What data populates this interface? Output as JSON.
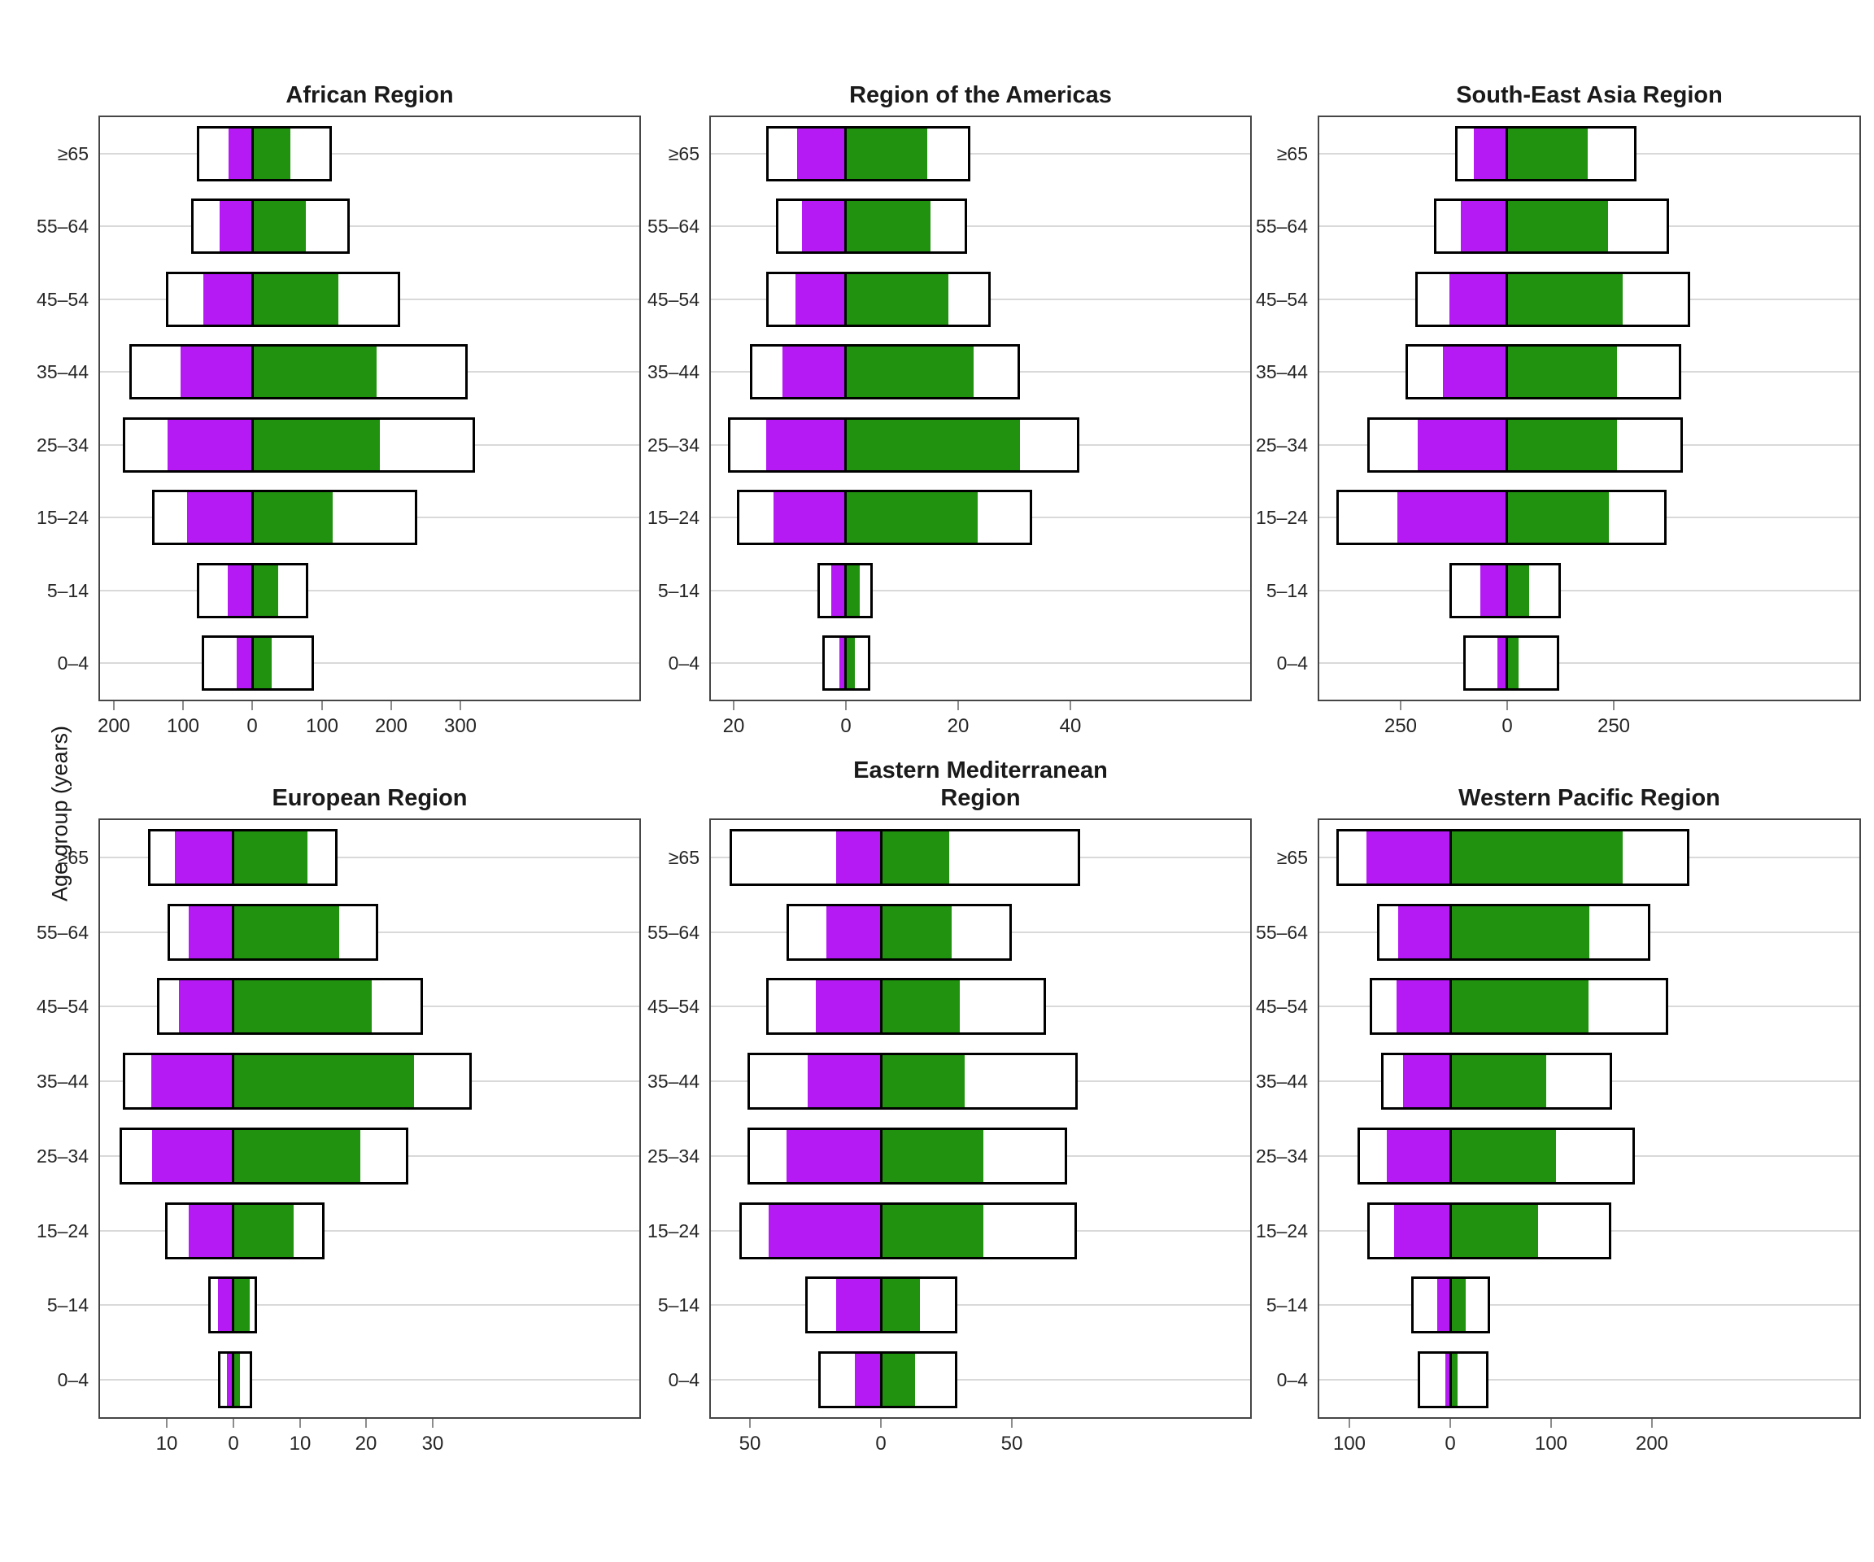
{
  "figure": {
    "y_axis_label": "Age group (years)",
    "background": "#ffffff",
    "colors": {
      "left_bar": "#b51af5",
      "right_bar": "#219110",
      "outline_bar_fill": "#ffffff",
      "outline_bar_border": "#000000",
      "panel_border": "#464646",
      "gridline": "#d9d9d9",
      "tick_mark": "#8c8c8c",
      "text": "#262626"
    }
  },
  "chart_data": [
    {
      "type": "bar",
      "title": "African Region",
      "orientation": "population-pyramid",
      "categories": [
        "≥65",
        "55–64",
        "45–54",
        "35–44",
        "25–34",
        "15–24",
        "5–14",
        "0–4"
      ],
      "series": [
        {
          "name": "outline_left",
          "values": [
            80,
            88,
            125,
            178,
            187,
            145,
            80,
            73
          ]
        },
        {
          "name": "filled_left",
          "values": [
            35,
            47,
            71,
            104,
            123,
            95,
            36,
            23
          ]
        },
        {
          "name": "filled_right",
          "values": [
            55,
            78,
            124,
            179,
            184,
            116,
            38,
            28
          ]
        },
        {
          "name": "outline_right",
          "values": [
            115,
            141,
            213,
            310,
            321,
            238,
            81,
            89
          ]
        }
      ],
      "xlim": [
        -220,
        558
      ],
      "xticks": [
        -200,
        -100,
        0,
        100,
        200,
        300
      ],
      "xtick_labels": [
        "200",
        "100",
        "0",
        "100",
        "200",
        "300"
      ],
      "grid": "horizontal-major",
      "legend": "none"
    },
    {
      "type": "bar",
      "title": "Region of the Americas",
      "orientation": "population-pyramid",
      "categories": [
        "≥65",
        "55–64",
        "45–54",
        "35–44",
        "25–34",
        "15–24",
        "5–14",
        "0–4"
      ],
      "series": [
        {
          "name": "outline_left",
          "values": [
            14.1,
            12.4,
            14.2,
            17.0,
            21.0,
            19.3,
            5.0,
            4.1
          ]
        },
        {
          "name": "filled_left",
          "values": [
            8.6,
            7.8,
            9.0,
            11.2,
            14.1,
            12.8,
            2.5,
            1.1
          ]
        },
        {
          "name": "filled_right",
          "values": [
            14.5,
            15.0,
            18.3,
            22.7,
            31.0,
            23.4,
            2.4,
            1.6
          ]
        },
        {
          "name": "outline_right",
          "values": [
            22.2,
            21.6,
            25.7,
            31.0,
            41.6,
            33.3,
            4.8,
            4.5
          ]
        }
      ],
      "xlim": [
        -24,
        72
      ],
      "xticks": [
        -20,
        0,
        20,
        40
      ],
      "xtick_labels": [
        "20",
        "0",
        "20",
        "40"
      ],
      "grid": "horizontal-major",
      "legend": "none"
    },
    {
      "type": "bar",
      "title": "South-East Asia Region",
      "orientation": "population-pyramid",
      "categories": [
        "≥65",
        "55–64",
        "45–54",
        "35–44",
        "25–34",
        "15–24",
        "5–14",
        "0–4"
      ],
      "series": [
        {
          "name": "outline_left",
          "values": [
            123,
            173,
            217,
            240,
            329,
            402,
            135,
            103
          ]
        },
        {
          "name": "filled_left",
          "values": [
            78,
            108,
            135,
            152,
            211,
            258,
            63,
            22
          ]
        },
        {
          "name": "filled_right",
          "values": [
            190,
            237,
            272,
            258,
            259,
            239,
            51,
            27
          ]
        },
        {
          "name": "outline_right",
          "values": [
            304,
            381,
            430,
            409,
            413,
            375,
            128,
            122
          ]
        }
      ],
      "xlim": [
        -442,
        829
      ],
      "xticks": [
        -250,
        0,
        250
      ],
      "xtick_labels": [
        "250",
        "0",
        "250"
      ],
      "grid": "horizontal-major",
      "legend": "none"
    },
    {
      "type": "bar",
      "title": "European Region",
      "orientation": "population-pyramid",
      "categories": [
        "≥65",
        "55–64",
        "45–54",
        "35–44",
        "25–34",
        "15–24",
        "5–14",
        "0–4"
      ],
      "series": [
        {
          "name": "outline_left",
          "values": [
            12.8,
            9.8,
            11.4,
            16.6,
            17.1,
            10.2,
            3.7,
            2.3
          ]
        },
        {
          "name": "filled_left",
          "values": [
            8.8,
            6.7,
            8.2,
            12.3,
            12.2,
            6.7,
            2.3,
            0.9
          ]
        },
        {
          "name": "filled_right",
          "values": [
            11.1,
            15.9,
            20.8,
            27.1,
            19.1,
            9.0,
            2.4,
            1.0
          ]
        },
        {
          "name": "outline_right",
          "values": [
            15.7,
            21.8,
            28.5,
            35.8,
            26.3,
            13.8,
            3.6,
            2.8
          ]
        }
      ],
      "xlim": [
        -20,
        61
      ],
      "xticks": [
        -10,
        0,
        10,
        20,
        30
      ],
      "xtick_labels": [
        "10",
        "0",
        "10",
        "20",
        "30"
      ],
      "grid": "horizontal-major",
      "legend": "none"
    },
    {
      "type": "bar",
      "title": "Eastern Mediterranean Region",
      "orientation": "population-pyramid",
      "categories": [
        "≥65",
        "55–64",
        "45–54",
        "35–44",
        "25–34",
        "15–24",
        "5–14",
        "0–4"
      ],
      "series": [
        {
          "name": "outline_left",
          "values": [
            58,
            36,
            44,
            51,
            51,
            54,
            29,
            24
          ]
        },
        {
          "name": "filled_left",
          "values": [
            17,
            21,
            25,
            28,
            36,
            43,
            17,
            10
          ]
        },
        {
          "name": "filled_right",
          "values": [
            26,
            27,
            30,
            32,
            39,
            39,
            15,
            13
          ]
        },
        {
          "name": "outline_right",
          "values": [
            76,
            50,
            63,
            75,
            71,
            75,
            29,
            29
          ]
        }
      ],
      "xlim": [
        -65,
        141
      ],
      "xticks": [
        -50,
        0,
        50
      ],
      "xtick_labels": [
        "50",
        "0",
        "50"
      ],
      "grid": "horizontal-major",
      "legend": "none"
    },
    {
      "type": "bar",
      "title": "Western Pacific Region",
      "orientation": "population-pyramid",
      "categories": [
        "≥65",
        "55–64",
        "45–54",
        "35–44",
        "25–34",
        "15–24",
        "5–14",
        "0–4"
      ],
      "series": [
        {
          "name": "outline_left",
          "values": [
            113,
            73,
            80,
            69,
            92,
            82,
            39,
            32
          ]
        },
        {
          "name": "filled_left",
          "values": [
            83,
            52,
            53,
            47,
            63,
            56,
            13,
            5
          ]
        },
        {
          "name": "filled_right",
          "values": [
            171,
            138,
            137,
            95,
            105,
            87,
            15,
            7
          ]
        },
        {
          "name": "outline_right",
          "values": [
            237,
            198,
            216,
            160,
            183,
            160,
            39,
            38
          ]
        }
      ],
      "xlim": [
        -130,
        406
      ],
      "xticks": [
        -100,
        0,
        100,
        200
      ],
      "xtick_labels": [
        "100",
        "0",
        "100",
        "200"
      ],
      "grid": "horizontal-major",
      "legend": "none"
    }
  ]
}
